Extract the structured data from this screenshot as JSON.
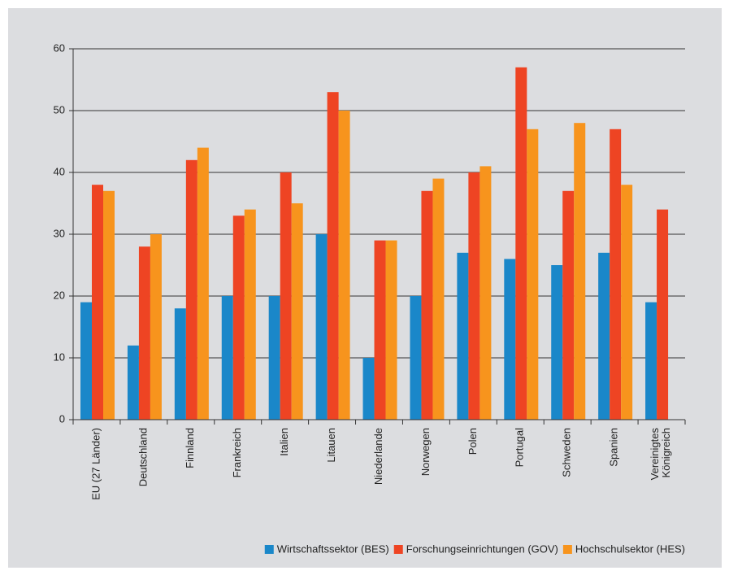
{
  "chart_data": {
    "type": "bar",
    "categories": [
      "EU (27 Länder)",
      "Deutschland",
      "Finnland",
      "Frankreich",
      "Italien",
      "Litauen",
      "Niederlande",
      "Norwegen",
      "Polen",
      "Portugal",
      "Schweden",
      "Spanien",
      "Vereinigtes Königreich"
    ],
    "series": [
      {
        "name": "Wirtschaftssektor (BES)",
        "color": "#1a87c9",
        "values": [
          19,
          12,
          18,
          20,
          20,
          30,
          10,
          20,
          27,
          26,
          25,
          27,
          19
        ]
      },
      {
        "name": "Forschungseinrichtungen (GOV)",
        "color": "#ee4423",
        "values": [
          38,
          28,
          42,
          33,
          40,
          53,
          29,
          37,
          40,
          57,
          37,
          47,
          34
        ]
      },
      {
        "name": "Hochschulsektor (HES)",
        "color": "#f7941d",
        "values": [
          37,
          30,
          44,
          34,
          35,
          50,
          29,
          39,
          41,
          47,
          48,
          38,
          null
        ]
      }
    ],
    "ylim": [
      0,
      60
    ],
    "yticks": [
      0,
      10,
      20,
      30,
      40,
      50,
      60
    ],
    "grid": true,
    "legend": "bottom-right"
  }
}
